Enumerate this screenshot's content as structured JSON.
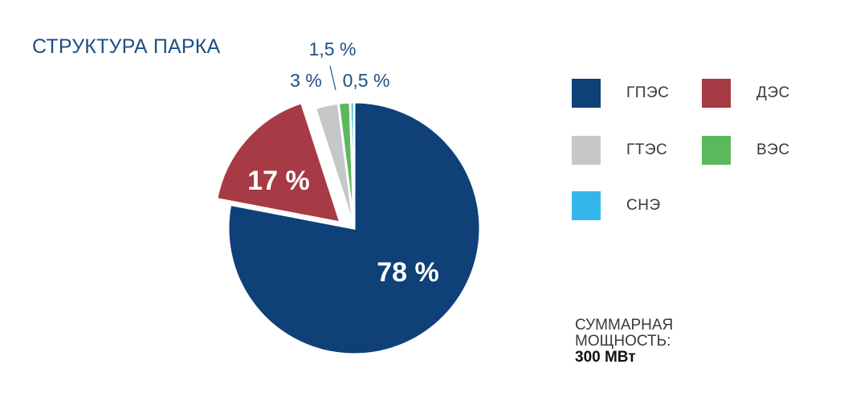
{
  "title": "СТРУКТУРА ПАРКА",
  "chart_data": {
    "type": "pie",
    "slices": [
      {
        "name": "ГПЭС",
        "value": 78,
        "label": "78 %",
        "color": "#0f4078"
      },
      {
        "name": "ДЭС",
        "value": 17,
        "label": "17 %",
        "color": "#a63a45"
      },
      {
        "name": "ГТЭС",
        "value": 3,
        "label": "3 %",
        "color": "#c6c7c8"
      },
      {
        "name": "ВЭС",
        "value": 1.5,
        "label": "1,5 %",
        "color": "#5cb85c"
      },
      {
        "name": "СНЭ",
        "value": 0.5,
        "label": "0,5 %",
        "color": "#34b7e8"
      }
    ],
    "exploded": "ДЭС",
    "legend_position": "right"
  },
  "legend": [
    {
      "name": "ГПЭС",
      "color": "#0f4078"
    },
    {
      "name": "ДЭС",
      "color": "#a63a45"
    },
    {
      "name": "ГТЭС",
      "color": "#c6c7c8"
    },
    {
      "name": "ВЭС",
      "color": "#5cb85c"
    },
    {
      "name": "СНЭ",
      "color": "#34b7e8"
    }
  ],
  "total": {
    "label_line1": "СУММАРНАЯ",
    "label_line2": "МОЩНОСТЬ:",
    "value": "300 МВт"
  }
}
